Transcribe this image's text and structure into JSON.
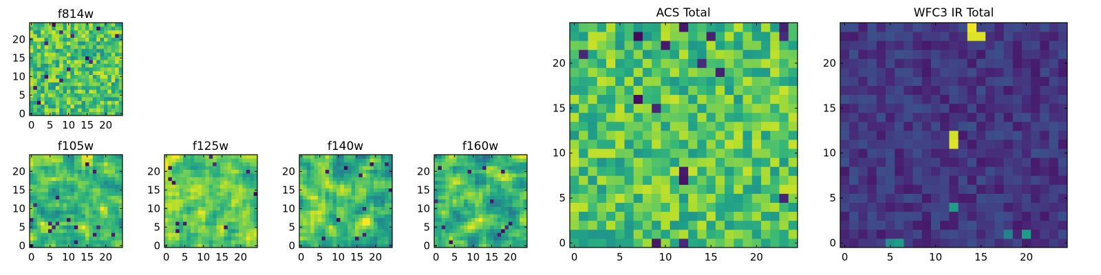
{
  "chart_data": [
    {
      "type": "heatmap",
      "title": "f814w",
      "grid_size": 25,
      "xlim": [
        0,
        25
      ],
      "ylim": [
        0,
        25
      ],
      "xticks": [
        0,
        5,
        10,
        15,
        20
      ],
      "yticks": [
        0,
        5,
        10,
        15,
        20
      ],
      "colormap": "viridis",
      "texture": "noise",
      "seed": 11,
      "level": 0.72,
      "spread": 0.22,
      "outlier_rate": 0.03,
      "hot_cells": [],
      "values_note": "per-pixel values are random noise; mostly green-yellow with scattered dark pixels"
    },
    {
      "type": "heatmap",
      "title": "f105w",
      "grid_size": 25,
      "xlim": [
        0,
        25
      ],
      "ylim": [
        0,
        25
      ],
      "xticks": [
        0,
        5,
        10,
        15,
        20
      ],
      "yticks": [
        0,
        5,
        10,
        15,
        20
      ],
      "colormap": "viridis",
      "texture": "smooth",
      "seed": 23,
      "level": 0.7,
      "spread": 0.25,
      "outlier_rate": 0.02,
      "hot_cells": [],
      "values_note": "smoothed noise; green with a few dark blobs"
    },
    {
      "type": "heatmap",
      "title": "f125w",
      "grid_size": 25,
      "xlim": [
        0,
        25
      ],
      "ylim": [
        0,
        25
      ],
      "xticks": [
        0,
        5,
        10,
        15,
        20
      ],
      "yticks": [
        0,
        5,
        10,
        15,
        20
      ],
      "colormap": "viridis",
      "texture": "smooth",
      "seed": 37,
      "level": 0.76,
      "spread": 0.22,
      "outlier_rate": 0.02,
      "hot_cells": [],
      "values_note": "smoothed noise; mostly yellow-green"
    },
    {
      "type": "heatmap",
      "title": "f140w",
      "grid_size": 25,
      "xlim": [
        0,
        25
      ],
      "ylim": [
        0,
        25
      ],
      "xticks": [
        0,
        5,
        10,
        15,
        20
      ],
      "yticks": [
        0,
        5,
        10,
        15,
        20
      ],
      "colormap": "viridis",
      "texture": "smooth",
      "seed": 53,
      "level": 0.7,
      "spread": 0.25,
      "outlier_rate": 0.02,
      "hot_cells": [],
      "values_note": "smoothed noise; green with dark patches"
    },
    {
      "type": "heatmap",
      "title": "f160w",
      "grid_size": 25,
      "xlim": [
        0,
        25
      ],
      "ylim": [
        0,
        25
      ],
      "xticks": [
        0,
        5,
        10,
        15,
        20
      ],
      "yticks": [
        0,
        5,
        10,
        15,
        20
      ],
      "colormap": "viridis",
      "texture": "smooth",
      "seed": 71,
      "level": 0.66,
      "spread": 0.27,
      "outlier_rate": 0.02,
      "hot_cells": [],
      "values_note": "smoothed noise; green with several dark patches"
    },
    {
      "type": "heatmap",
      "title": "ACS Total",
      "grid_size": 25,
      "xlim": [
        0,
        25
      ],
      "ylim": [
        0,
        25
      ],
      "xticks": [
        0,
        5,
        10,
        15,
        20
      ],
      "yticks": [
        0,
        5,
        10,
        15,
        20
      ],
      "colormap": "viridis",
      "texture": "noise",
      "seed": 97,
      "level": 0.72,
      "spread": 0.2,
      "outlier_rate": 0.03,
      "hot_cells": [],
      "values_note": "random noise; green-yellow with scattered dark purple pixels"
    },
    {
      "type": "heatmap",
      "title": "WFC3 IR Total",
      "grid_size": 25,
      "xlim": [
        0,
        25
      ],
      "ylim": [
        0,
        25
      ],
      "xticks": [
        0,
        5,
        10,
        15,
        20
      ],
      "yticks": [
        0,
        5,
        10,
        15,
        20
      ],
      "colormap": "viridis",
      "texture": "noise",
      "seed": 131,
      "level": 0.16,
      "spread": 0.09,
      "outlier_rate": 0.0,
      "hot_cells": [
        {
          "x": 14,
          "y": 24,
          "value": 0.98
        },
        {
          "x": 14,
          "y": 23,
          "value": 0.95
        },
        {
          "x": 15,
          "y": 23,
          "value": 0.95
        },
        {
          "x": 12,
          "y": 11,
          "value": 0.95
        },
        {
          "x": 12,
          "y": 12,
          "value": 0.93
        },
        {
          "x": 12,
          "y": 4,
          "value": 0.55
        },
        {
          "x": 5,
          "y": 0,
          "value": 0.5
        },
        {
          "x": 6,
          "y": 0,
          "value": 0.55
        },
        {
          "x": 20,
          "y": 1,
          "value": 0.55
        },
        {
          "x": 18,
          "y": 1,
          "value": 0.45
        }
      ],
      "values_note": "mostly low values (dark blue/purple) with a bright yellow spot near (14,23) and (12,11.5)"
    }
  ]
}
